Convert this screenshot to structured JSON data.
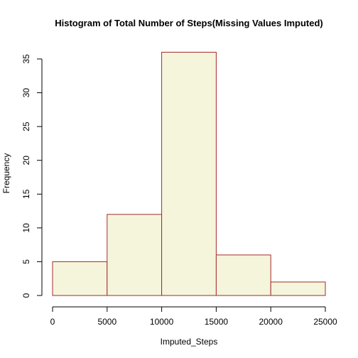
{
  "chart_data": {
    "type": "bar",
    "title": "Histogram of Total Number of Steps(Missing Values Imputed)",
    "xlabel": "Imputed_Steps",
    "ylabel": "Frequency",
    "bins": [
      {
        "start": 0,
        "end": 5000,
        "value": 5
      },
      {
        "start": 5000,
        "end": 10000,
        "value": 12
      },
      {
        "start": 10000,
        "end": 15000,
        "value": 36
      },
      {
        "start": 15000,
        "end": 20000,
        "value": 6
      },
      {
        "start": 20000,
        "end": 25000,
        "value": 2
      }
    ],
    "xlim": [
      0,
      25000
    ],
    "ylim": [
      0,
      35
    ],
    "x_ticks": [
      "0",
      "5000",
      "10000",
      "15000",
      "20000",
      "25000"
    ],
    "y_ticks": [
      "0",
      "5",
      "10",
      "15",
      "20",
      "25",
      "30",
      "35"
    ],
    "bar_fill": "#f5f5dc",
    "bar_stroke": "#a52a2a",
    "grid": false,
    "legend": "none"
  }
}
